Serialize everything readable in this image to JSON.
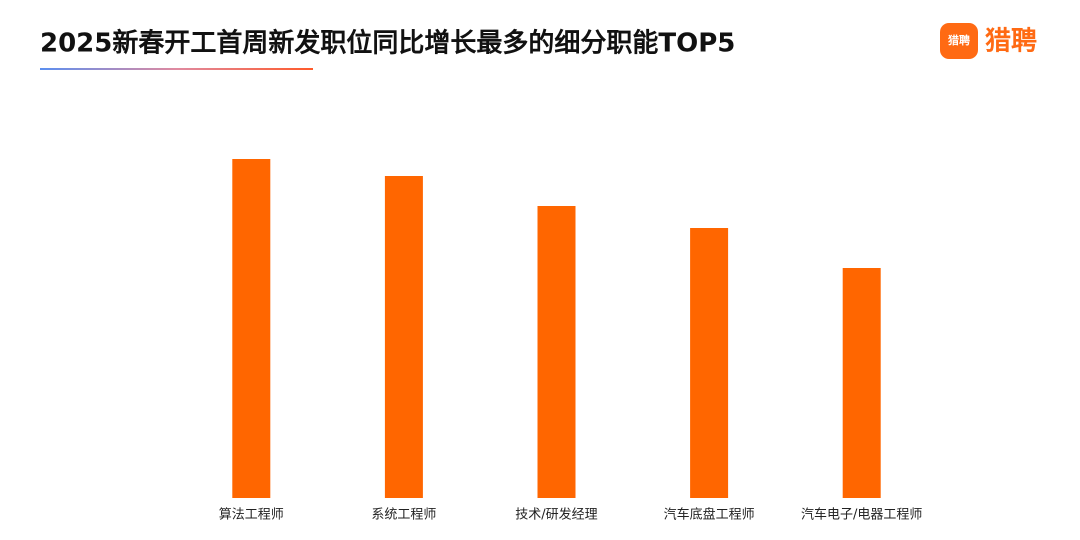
{
  "chart_data": {
    "type": "bar",
    "title": "2025新春开工首周新发职位同比增长最多的细分职能TOP5",
    "logo": {
      "icon_text": "猎聘",
      "text": "猎聘"
    },
    "categories": [
      "算法工程师",
      "系统工程师",
      "技术/研发经理",
      "汽车底盘工程师",
      "汽车电子/电器工程师"
    ],
    "values": [
      339,
      322,
      292,
      270,
      230
    ],
    "color": "#ff6600",
    "ylim": [
      0,
      340
    ]
  }
}
